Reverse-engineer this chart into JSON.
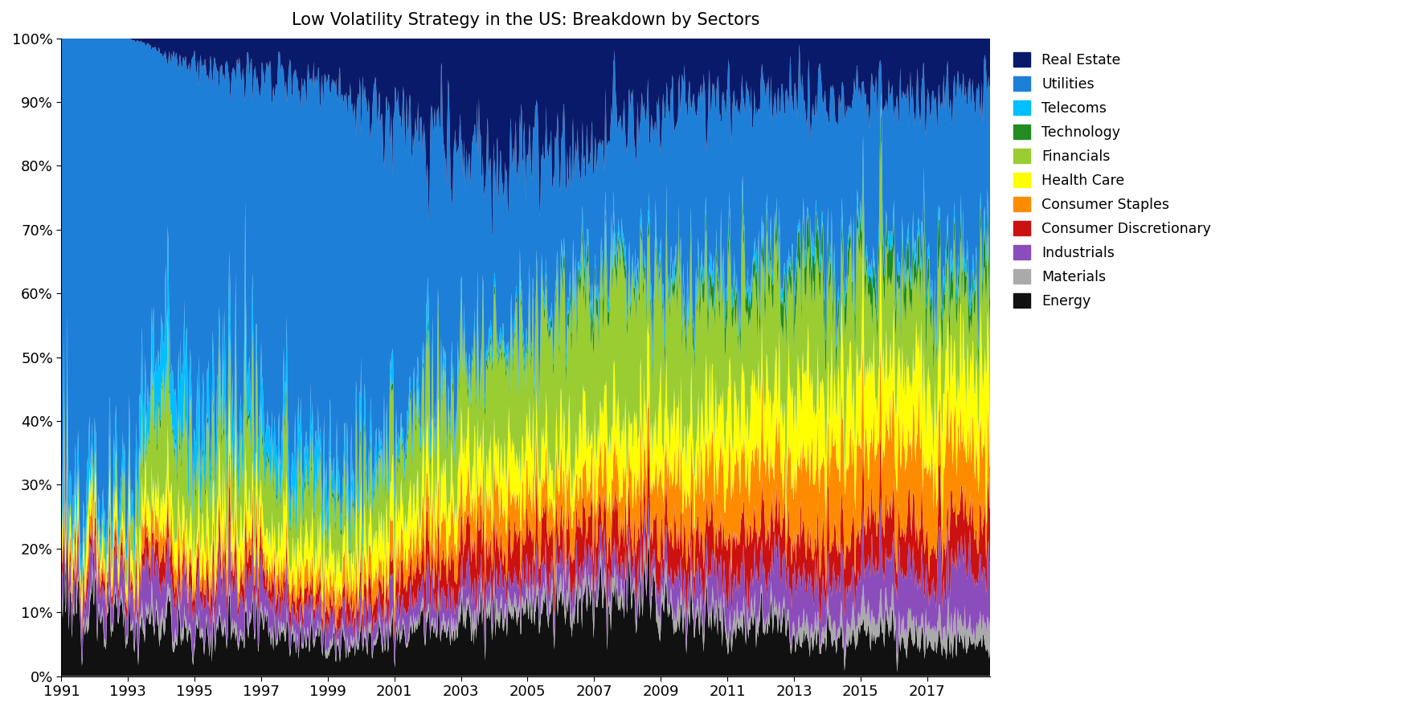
{
  "title": "Low Volatility Strategy in the US: Breakdown by Sectors",
  "xlim": [
    1991,
    2018.9
  ],
  "ylim": [
    0,
    1
  ],
  "ytick_labels": [
    "0%",
    "10%",
    "20%",
    "30%",
    "40%",
    "50%",
    "60%",
    "70%",
    "80%",
    "90%",
    "100%"
  ],
  "xticks": [
    1991,
    1993,
    1995,
    1997,
    1999,
    2001,
    2003,
    2005,
    2007,
    2009,
    2011,
    2013,
    2015,
    2017
  ],
  "sectors": [
    "Energy",
    "Materials",
    "Industrials",
    "Consumer Discretionary",
    "Consumer Staples",
    "Health Care",
    "Financials",
    "Technology",
    "Telecoms",
    "Utilities",
    "Real Estate"
  ],
  "colors": [
    "#111111",
    "#AAAAAA",
    "#8B4DBB",
    "#CC1111",
    "#FF8C00",
    "#FFFF00",
    "#9ACD32",
    "#228B22",
    "#00BFFF",
    "#1E7FD8",
    "#0A1A6B"
  ],
  "legend_order": [
    "Real Estate",
    "Utilities",
    "Telecoms",
    "Technology",
    "Financials",
    "Health Care",
    "Consumer Staples",
    "Consumer Discretionary",
    "Industrials",
    "Materials",
    "Energy"
  ],
  "legend_colors": [
    "#0A1A6B",
    "#1E7FD8",
    "#00BFFF",
    "#228B22",
    "#9ACD32",
    "#FFFF00",
    "#FF8C00",
    "#CC1111",
    "#8B4DBB",
    "#AAAAAA",
    "#111111"
  ],
  "yearly_data": {
    "1991": [
      0.1,
      0.01,
      0.04,
      0.02,
      0.02,
      0.03,
      0.02,
      0.0,
      0.04,
      0.72,
      0.0
    ],
    "1992": [
      0.1,
      0.01,
      0.04,
      0.02,
      0.02,
      0.03,
      0.02,
      0.0,
      0.04,
      0.72,
      0.0
    ],
    "1993": [
      0.08,
      0.01,
      0.05,
      0.02,
      0.02,
      0.03,
      0.05,
      0.0,
      0.05,
      0.69,
      0.0
    ],
    "1994": [
      0.08,
      0.02,
      0.07,
      0.04,
      0.04,
      0.05,
      0.15,
      0.01,
      0.1,
      0.42,
      0.02
    ],
    "1995": [
      0.06,
      0.01,
      0.05,
      0.03,
      0.03,
      0.05,
      0.1,
      0.01,
      0.07,
      0.55,
      0.04
    ],
    "1996": [
      0.07,
      0.01,
      0.05,
      0.03,
      0.03,
      0.05,
      0.1,
      0.01,
      0.07,
      0.54,
      0.04
    ],
    "1997": [
      0.07,
      0.01,
      0.05,
      0.03,
      0.03,
      0.05,
      0.1,
      0.01,
      0.06,
      0.53,
      0.06
    ],
    "1998": [
      0.06,
      0.01,
      0.04,
      0.03,
      0.03,
      0.05,
      0.09,
      0.01,
      0.06,
      0.55,
      0.07
    ],
    "1999": [
      0.05,
      0.01,
      0.04,
      0.03,
      0.03,
      0.05,
      0.08,
      0.01,
      0.05,
      0.57,
      0.08
    ],
    "2000": [
      0.05,
      0.01,
      0.03,
      0.03,
      0.03,
      0.05,
      0.07,
      0.01,
      0.04,
      0.59,
      0.09
    ],
    "2001": [
      0.06,
      0.01,
      0.04,
      0.04,
      0.04,
      0.06,
      0.09,
      0.01,
      0.03,
      0.5,
      0.12
    ],
    "2002": [
      0.07,
      0.01,
      0.04,
      0.05,
      0.05,
      0.06,
      0.11,
      0.01,
      0.03,
      0.42,
      0.15
    ],
    "2003": [
      0.08,
      0.02,
      0.04,
      0.06,
      0.06,
      0.07,
      0.13,
      0.01,
      0.02,
      0.33,
      0.18
    ],
    "2004": [
      0.09,
      0.02,
      0.04,
      0.06,
      0.07,
      0.07,
      0.16,
      0.01,
      0.02,
      0.27,
      0.19
    ],
    "2005": [
      0.1,
      0.02,
      0.04,
      0.06,
      0.07,
      0.07,
      0.18,
      0.01,
      0.02,
      0.24,
      0.19
    ],
    "2006": [
      0.1,
      0.02,
      0.04,
      0.06,
      0.07,
      0.07,
      0.2,
      0.02,
      0.02,
      0.22,
      0.18
    ],
    "2007": [
      0.11,
      0.02,
      0.04,
      0.06,
      0.07,
      0.08,
      0.22,
      0.03,
      0.02,
      0.18,
      0.17
    ],
    "2008": [
      0.13,
      0.02,
      0.04,
      0.06,
      0.08,
      0.09,
      0.22,
      0.02,
      0.02,
      0.2,
      0.12
    ],
    "2009": [
      0.11,
      0.02,
      0.04,
      0.06,
      0.09,
      0.09,
      0.19,
      0.02,
      0.02,
      0.25,
      0.11
    ],
    "2010": [
      0.09,
      0.02,
      0.05,
      0.06,
      0.09,
      0.09,
      0.18,
      0.03,
      0.02,
      0.27,
      0.1
    ],
    "2011": [
      0.08,
      0.02,
      0.05,
      0.07,
      0.1,
      0.1,
      0.17,
      0.03,
      0.02,
      0.27,
      0.09
    ],
    "2012": [
      0.08,
      0.02,
      0.06,
      0.07,
      0.1,
      0.1,
      0.17,
      0.03,
      0.02,
      0.25,
      0.1
    ],
    "2013": [
      0.07,
      0.02,
      0.07,
      0.07,
      0.11,
      0.11,
      0.16,
      0.04,
      0.02,
      0.24,
      0.09
    ],
    "2014": [
      0.06,
      0.02,
      0.07,
      0.07,
      0.12,
      0.12,
      0.15,
      0.04,
      0.02,
      0.24,
      0.09
    ],
    "2015": [
      0.06,
      0.03,
      0.07,
      0.07,
      0.12,
      0.12,
      0.14,
      0.04,
      0.02,
      0.24,
      0.09
    ],
    "2016": [
      0.06,
      0.03,
      0.08,
      0.07,
      0.12,
      0.12,
      0.13,
      0.04,
      0.02,
      0.24,
      0.09
    ],
    "2017": [
      0.05,
      0.03,
      0.08,
      0.07,
      0.12,
      0.12,
      0.14,
      0.04,
      0.02,
      0.24,
      0.09
    ],
    "2018": [
      0.05,
      0.03,
      0.08,
      0.07,
      0.12,
      0.12,
      0.12,
      0.04,
      0.02,
      0.26,
      0.09
    ]
  }
}
